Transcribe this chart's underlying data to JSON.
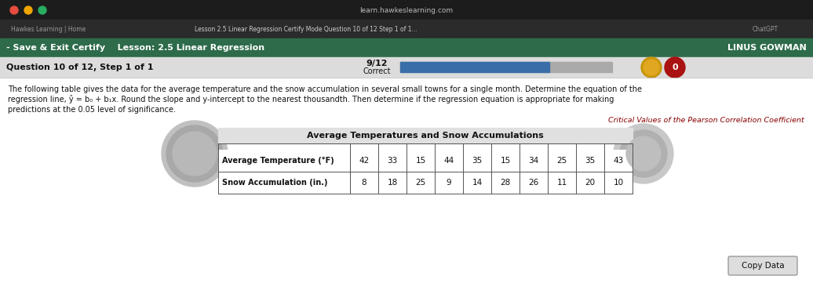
{
  "browser_tab_text": "learn.hawkeslearning.com",
  "tab1_text": "Hawkes Learning | Home",
  "tab2_text": "Lesson 2.5 Linear Regression Certify Mode Question 10 of 12 Step 1 of 1...",
  "tab3_text": "ChatGPT",
  "header_left": "- Save & Exit Certify    Lesson: 2.5 Linear Regression",
  "header_right": "LINUS GOWMAN",
  "question_label": "Question 10 of 12, Step 1 of 1",
  "score_fraction": "9/12",
  "score_label": "Correct",
  "body_text_line1": "The following table gives the data for the average temperature and the snow accumulation in several small towns for a single month. Determine the equation of the",
  "body_text_line2": "regression line, ŷ = b₀ + b₁x. Round the slope and y-intercept to the nearest thousandth. Then determine if the regression equation is appropriate for making",
  "body_text_line3": "predictions at the 0.05 level of significance.",
  "critical_values_link": "Critical Values of the Pearson Correlation Coefficient",
  "table_title": "Average Temperatures and Snow Accumulations",
  "table_row1_label": "Average Temperature (°F)",
  "table_row1_values": [
    42,
    33,
    15,
    44,
    35,
    15,
    34,
    25,
    35,
    43
  ],
  "table_row2_label": "Snow Accumulation (in.)",
  "table_row2_values": [
    8,
    18,
    25,
    9,
    14,
    28,
    26,
    11,
    20,
    10
  ],
  "copy_data_btn": "Copy Data",
  "bg_top_bar": "#1c1c1c",
  "bg_tab_bar": "#2b2b2b",
  "bg_green_header": "#2d6b4a",
  "bg_content": "#e8e8e8",
  "bg_white": "#ffffff",
  "bg_question_row": "#dcdcdc",
  "progress_bar_fill": "#3a6ea8",
  "progress_bar_bg": "#aaaaaa",
  "gold_circle_color": "#c8950a",
  "red_circle_color": "#aa1111",
  "header_text_color": "#ffffff",
  "body_text_color": "#111111",
  "table_border_color": "#555555",
  "table_header_bg": "#e0e0e0",
  "link_color": "#880000",
  "btn_bg": "#dddddd",
  "btn_border": "#888888",
  "traffic_red": "#e74c3c",
  "traffic_yellow": "#f0a500",
  "traffic_green": "#27ae60"
}
